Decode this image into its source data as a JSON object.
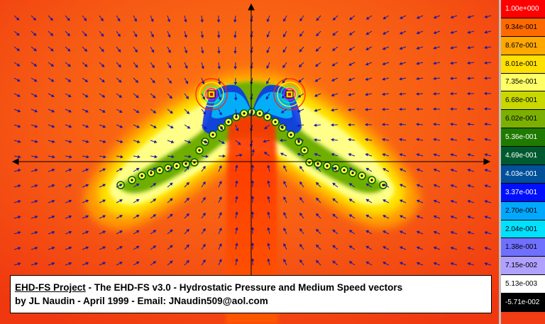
{
  "caption": {
    "project": "EHD-FS Project",
    "sep1": " -   The EHD-FS v3.0   - Hydrostatic Pressure and Medium Speed vectors",
    "line2": "by JL Naudin - April 1999 - Email: JNaudin509@aol.com"
  },
  "legend": [
    {
      "label": "1.00e+000",
      "color": "#ff0000",
      "text": "#ffffff"
    },
    {
      "label": "9.34e-001",
      "color": "#ff6a00",
      "text": "#000000"
    },
    {
      "label": "8.67e-001",
      "color": "#ffa800",
      "text": "#000000"
    },
    {
      "label": "8.01e-001",
      "color": "#ffe000",
      "text": "#000000"
    },
    {
      "label": "7.35e-001",
      "color": "#ffff66",
      "text": "#000000"
    },
    {
      "label": "6.68e-001",
      "color": "#c8d800",
      "text": "#000000"
    },
    {
      "label": "6.02e-001",
      "color": "#7bb000",
      "text": "#000000"
    },
    {
      "label": "5.36e-001",
      "color": "#1f7a00",
      "text": "#ffffff"
    },
    {
      "label": "4.69e-001",
      "color": "#005a30",
      "text": "#ffffff"
    },
    {
      "label": "4.03e-001",
      "color": "#00509a",
      "text": "#ffffff"
    },
    {
      "label": "3.37e-001",
      "color": "#0010ff",
      "text": "#ffffff"
    },
    {
      "label": "2.70e-001",
      "color": "#00a8ff",
      "text": "#000000"
    },
    {
      "label": "2.04e-001",
      "color": "#00e0ff",
      "text": "#000000"
    },
    {
      "label": "1.38e-001",
      "color": "#7070ff",
      "text": "#000000"
    },
    {
      "label": "7.15e-002",
      "color": "#b0a0ff",
      "text": "#000000"
    },
    {
      "label": "5.13e-003",
      "color": "#ffffff",
      "text": "#000000"
    },
    {
      "label": "-5.71e-002",
      "color": "#000000",
      "text": "#ffffff"
    }
  ],
  "colors": {
    "background": "#f23c14",
    "vector": "#1a1aa0",
    "axis": "#000000"
  }
}
